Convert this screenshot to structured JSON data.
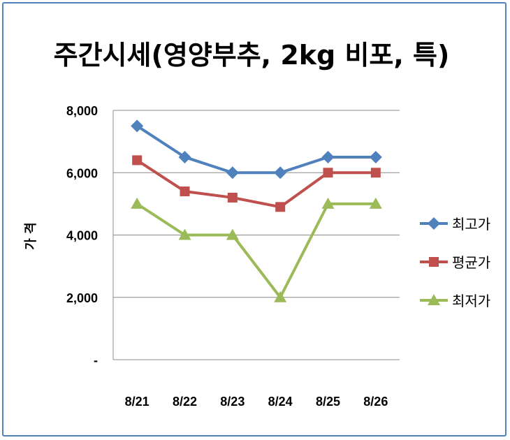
{
  "chart_data": {
    "type": "line",
    "title": "주간시세(영양부추, 2kg 비포, 특)",
    "ylabel": "가 격",
    "xlabel": "",
    "categories": [
      "8/21",
      "8/22",
      "8/23",
      "8/24",
      "8/25",
      "8/26"
    ],
    "ylim": [
      0,
      8000
    ],
    "yticks": [
      0,
      2000,
      4000,
      6000,
      8000
    ],
    "ytick_labels": [
      "-",
      "2,000",
      "4,000",
      "6,000",
      "8,000"
    ],
    "grid": true,
    "legend_position": "right",
    "series": [
      {
        "name": "최고가",
        "values": [
          7500,
          6500,
          6000,
          6000,
          6500,
          6500
        ],
        "color": "#4f81bd",
        "marker": "diamond"
      },
      {
        "name": "평균가",
        "values": [
          6400,
          5400,
          5200,
          4900,
          6000,
          6000
        ],
        "color": "#c0504d",
        "marker": "square"
      },
      {
        "name": "최저가",
        "values": [
          5000,
          4000,
          4000,
          2000,
          5000,
          5000
        ],
        "color": "#9bbb59",
        "marker": "triangle"
      }
    ]
  }
}
